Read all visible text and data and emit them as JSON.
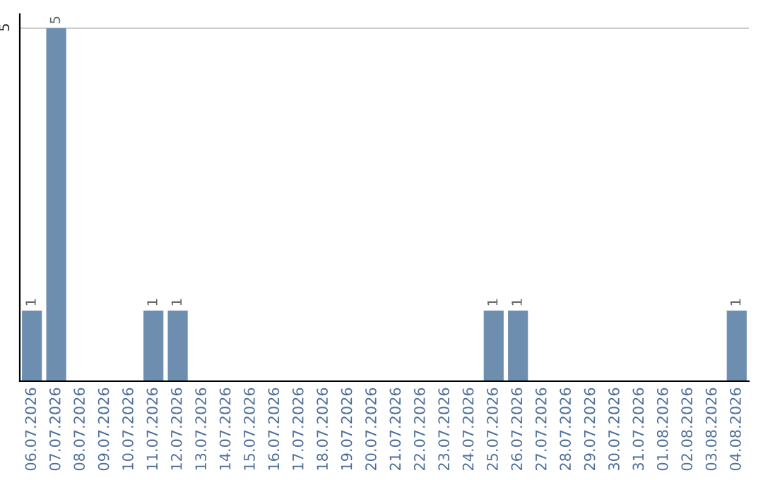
{
  "chart_data": {
    "type": "bar",
    "categories": [
      "06.07.2026",
      "07.07.2026",
      "08.07.2026",
      "09.07.2026",
      "10.07.2026",
      "11.07.2026",
      "12.07.2026",
      "13.07.2026",
      "14.07.2026",
      "15.07.2026",
      "16.07.2026",
      "17.07.2026",
      "18.07.2026",
      "19.07.2026",
      "20.07.2026",
      "21.07.2026",
      "22.07.2026",
      "23.07.2026",
      "24.07.2026",
      "25.07.2026",
      "26.07.2026",
      "27.07.2026",
      "28.07.2026",
      "29.07.2026",
      "30.07.2026",
      "31.07.2026",
      "01.08.2026",
      "02.08.2026",
      "03.08.2026",
      "04.08.2026"
    ],
    "values": [
      1,
      5,
      0,
      0,
      0,
      1,
      1,
      0,
      0,
      0,
      0,
      0,
      0,
      0,
      0,
      0,
      0,
      0,
      0,
      1,
      1,
      0,
      0,
      0,
      0,
      0,
      0,
      0,
      0,
      1
    ],
    "value_labels": [
      "1",
      "5",
      null,
      null,
      null,
      "1",
      "1",
      null,
      null,
      null,
      null,
      null,
      null,
      null,
      null,
      null,
      null,
      null,
      null,
      "1",
      "1",
      null,
      null,
      null,
      null,
      null,
      null,
      null,
      null,
      "1"
    ],
    "color": "#6d8eae",
    "ylim": [
      0,
      5.2
    ],
    "yticks": [
      5
    ],
    "grid": "y",
    "legend": false
  }
}
